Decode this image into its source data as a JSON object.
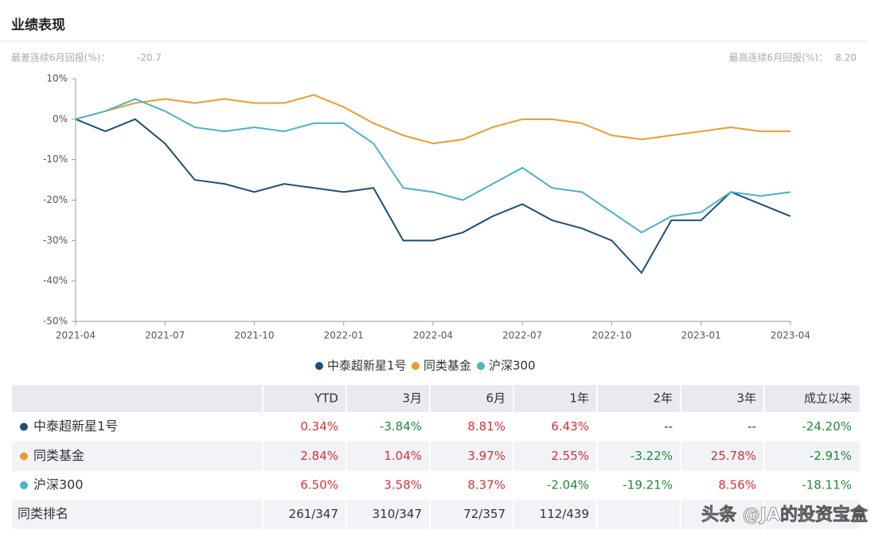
{
  "header": {
    "title": "业绩表现"
  },
  "stats": {
    "worst_label": "最差连续6月回报(%)：",
    "worst_value": "-20.7",
    "best_label": "最高连续6月回报(%)：",
    "best_value": "8.20"
  },
  "chart_data": {
    "type": "line",
    "categories": [
      "2021-04",
      null,
      null,
      "2021-07",
      null,
      null,
      "2021-10",
      null,
      null,
      "2022-01",
      null,
      null,
      "2022-04",
      null,
      null,
      "2022-07",
      null,
      null,
      "2022-10",
      null,
      null,
      "2023-01",
      null,
      null,
      "2023-04"
    ],
    "series": [
      {
        "name": "中泰超新星1号",
        "color": "#1d4f78",
        "values": [
          0,
          -3,
          0,
          -6,
          -15,
          -16,
          -18,
          -16,
          -17,
          -18,
          -17,
          -30,
          -30,
          -28,
          -24,
          -21,
          -25,
          -27,
          -30,
          -38,
          -25,
          -25,
          -18,
          -21,
          -24
        ]
      },
      {
        "name": "同类基金",
        "color": "#f09a2e",
        "values": [
          0,
          2,
          4,
          5,
          4,
          5,
          4,
          4,
          6,
          3,
          -1,
          -4,
          -6,
          -5,
          -2,
          0,
          0,
          -1,
          -4,
          -5,
          -4,
          -3,
          -2,
          -3,
          -3
        ]
      },
      {
        "name": "沪深300",
        "color": "#4bb3c4",
        "values": [
          0,
          2,
          5,
          2,
          -2,
          -3,
          -2,
          -3,
          -1,
          -1,
          -6,
          -17,
          -18,
          -20,
          -16,
          -12,
          -17,
          -18,
          -23,
          -28,
          -24,
          -23,
          -18,
          -19,
          -18
        ]
      }
    ],
    "ylim": [
      -50,
      10
    ],
    "yticks": [
      {
        "value": -50,
        "label": "-50%"
      },
      {
        "value": -40,
        "label": "-40%"
      },
      {
        "value": -30,
        "label": "-30%"
      },
      {
        "value": -20,
        "label": "-20%"
      },
      {
        "value": -10,
        "label": "-10%"
      },
      {
        "value": 0,
        "label": "0%"
      },
      {
        "value": 10,
        "label": "10%"
      }
    ],
    "grid": false,
    "legend": "bottom"
  },
  "table": {
    "header": [
      "YTD",
      "3月",
      "6月",
      "1年",
      "2年",
      "3年",
      "成立以来"
    ],
    "rows": [
      [
        "中泰超新星1号",
        "0.34%",
        "-3.84%",
        "8.81%",
        "6.43%",
        "--",
        "--",
        "-24.20%"
      ],
      [
        "同类基金",
        "2.84%",
        "1.04%",
        "3.97%",
        "2.55%",
        "-3.22%",
        "25.78%",
        "-2.91%"
      ],
      [
        "沪深300",
        "6.50%",
        "3.58%",
        "8.37%",
        "-2.04%",
        "-19.21%",
        "8.56%",
        "-18.11%"
      ],
      [
        "同类排名",
        "261/347",
        "310/347",
        "72/357",
        "112/439",
        "",
        "",
        ""
      ]
    ]
  },
  "watermark": "头条 @JA的投资宝盒"
}
